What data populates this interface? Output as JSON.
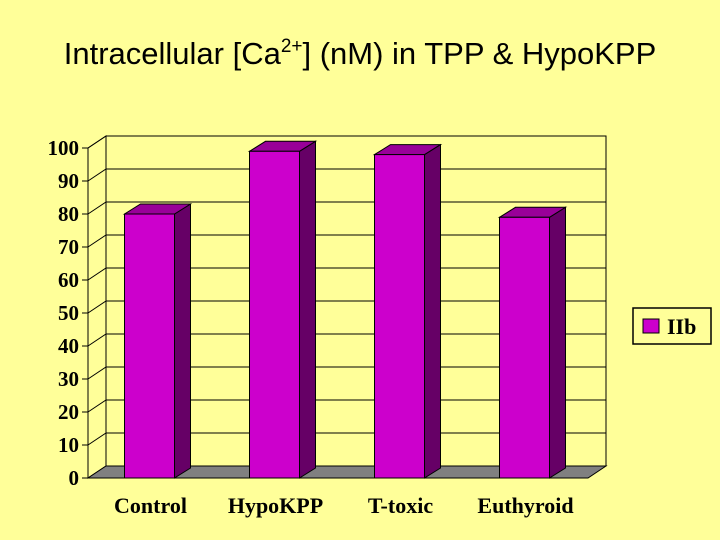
{
  "slide": {
    "title_main": "Intracellular [Ca",
    "title_sup": "2+",
    "title_rest": "] (nM) in TPP & HypoKPP"
  },
  "colors": {
    "background": "#ffff99",
    "bar_front": "#cc00cc",
    "bar_side": "#660066",
    "bar_top": "#990099",
    "floor": "#808080",
    "wall": "#ffff99"
  },
  "chart_data": {
    "type": "bar",
    "three_d": true,
    "categories": [
      "Control",
      "HypoKPP",
      "T-toxic",
      "Euthyroid"
    ],
    "series": [
      {
        "name": "IIb",
        "values": [
          80,
          99,
          98,
          79
        ]
      }
    ],
    "ylim": [
      0,
      100
    ],
    "yticks": [
      0,
      10,
      20,
      30,
      40,
      50,
      60,
      70,
      80,
      90,
      100
    ],
    "grid": true,
    "legend_position": "right"
  }
}
